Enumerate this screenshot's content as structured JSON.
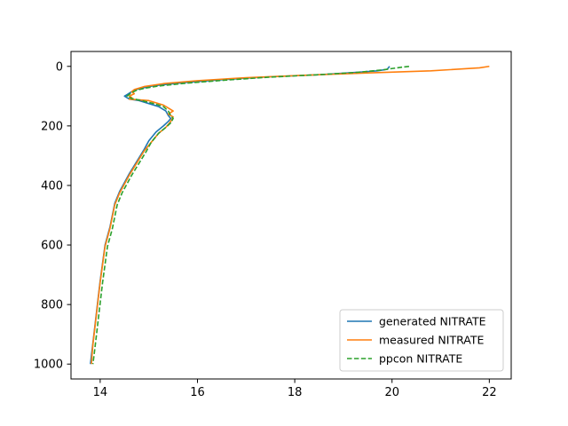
{
  "chart_data": {
    "type": "line",
    "title": "",
    "xlabel": "",
    "ylabel": "",
    "xlim": [
      13.4,
      22.45
    ],
    "ylim": [
      1050,
      -50
    ],
    "y_inverted": true,
    "xticks": [
      14,
      16,
      18,
      20,
      22
    ],
    "yticks": [
      0,
      200,
      400,
      600,
      800,
      1000
    ],
    "grid": false,
    "legend_position": "lower-right",
    "series": [
      {
        "name": "generated NITRATE",
        "color": "#1f77b4",
        "linestyle": "solid",
        "x": [
          19.95,
          19.9,
          19.7,
          19.3,
          18.5,
          17.5,
          16.5,
          15.7,
          15.1,
          14.8,
          14.7,
          14.6,
          14.55,
          14.5,
          14.6,
          14.8,
          15.0,
          15.2,
          15.35,
          15.4,
          15.45,
          15.4,
          15.3,
          15.15,
          15.0,
          14.9,
          14.75,
          14.6,
          14.5,
          14.4,
          14.3,
          14.25,
          14.2,
          14.1,
          14.05,
          14.0,
          13.95,
          13.9,
          13.85,
          13.82,
          13.8
        ],
        "y": [
          0,
          10,
          15,
          20,
          28,
          35,
          45,
          55,
          65,
          75,
          80,
          90,
          95,
          100,
          110,
          115,
          125,
          135,
          150,
          165,
          175,
          185,
          200,
          220,
          250,
          280,
          320,
          360,
          390,
          420,
          460,
          500,
          540,
          600,
          660,
          720,
          790,
          860,
          930,
          970,
          1000
        ]
      },
      {
        "name": "measured NITRATE",
        "color": "#ff7f0e",
        "linestyle": "solid",
        "x": [
          22.0,
          21.8,
          20.8,
          19.5,
          18.2,
          17.0,
          16.0,
          15.3,
          14.9,
          14.7,
          14.65,
          14.7,
          14.6,
          14.65,
          14.6,
          15.0,
          15.3,
          15.4,
          15.5,
          15.4,
          15.5,
          15.45,
          15.35,
          15.2,
          15.05,
          14.9,
          14.75,
          14.6,
          14.5,
          14.4,
          14.3,
          14.25,
          14.2,
          14.1,
          14.05,
          14.0,
          13.95,
          13.9,
          13.85,
          13.83,
          13.82
        ],
        "y": [
          0,
          5,
          15,
          22,
          30,
          38,
          48,
          58,
          68,
          78,
          85,
          92,
          100,
          105,
          110,
          115,
          130,
          140,
          150,
          160,
          170,
          185,
          205,
          225,
          255,
          285,
          325,
          365,
          395,
          425,
          465,
          505,
          545,
          605,
          665,
          725,
          795,
          865,
          935,
          975,
          1000
        ]
      },
      {
        "name": "ppcon NITRATE",
        "color": "#2ca02c",
        "linestyle": "dashed",
        "x": [
          20.35,
          20.1,
          19.8,
          19.3,
          18.5,
          17.5,
          16.6,
          15.8,
          15.2,
          14.9,
          14.75,
          14.65,
          14.6,
          14.55,
          14.65,
          14.85,
          15.1,
          15.3,
          15.4,
          15.45,
          15.5,
          15.45,
          15.35,
          15.2,
          15.05,
          14.95,
          14.8,
          14.65,
          14.55,
          14.45,
          14.35,
          14.3,
          14.25,
          14.15,
          14.1,
          14.05,
          14.0,
          13.95,
          13.9,
          13.87,
          13.85
        ],
        "y": [
          0,
          5,
          12,
          20,
          28,
          36,
          46,
          56,
          66,
          74,
          80,
          88,
          94,
          100,
          108,
          115,
          125,
          135,
          150,
          165,
          175,
          190,
          205,
          225,
          255,
          285,
          325,
          365,
          395,
          425,
          465,
          505,
          545,
          605,
          665,
          725,
          795,
          865,
          935,
          975,
          1000
        ]
      }
    ]
  }
}
